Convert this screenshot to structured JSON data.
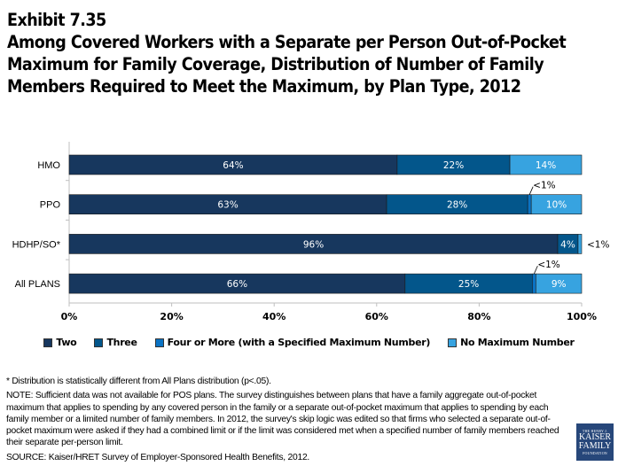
{
  "header": {
    "exhibit": "Exhibit 7.35",
    "title_lines": [
      "Among Covered Workers with a Separate per Person Out-of-Pocket",
      "Maximum for Family Coverage, Distribution of Number of Family",
      "Members Required to Meet the Maximum, by Plan Type, 2012"
    ]
  },
  "chart_data": {
    "type": "bar",
    "orientation": "horizontal",
    "stacked": true,
    "title": "Among Covered Workers with a Separate per Person Out-of-Pocket Maximum for Family Coverage, Distribution of Number of Family Members Required to Meet the Maximum, by Plan Type, 2012",
    "categories": [
      "HMO",
      "PPO",
      "HDHP/SO*",
      "All PLANS"
    ],
    "series": [
      {
        "name": "Two",
        "color": "#17375e",
        "values": [
          64,
          63,
          96,
          66
        ],
        "labels": [
          "64%",
          "63%",
          "96%",
          "66%"
        ]
      },
      {
        "name": "Three",
        "color": "#03568b",
        "values": [
          22,
          28,
          4,
          25
        ],
        "labels": [
          "22%",
          "28%",
          "4%",
          "25%"
        ]
      },
      {
        "name": "Four or More (with a Specified Maximum Number)",
        "color": "#0a73c4",
        "values": [
          0,
          0.7,
          0,
          0.7
        ],
        "labels": [
          "",
          "<1%",
          "",
          "<1%"
        ]
      },
      {
        "name": "No Maximum Number",
        "color": "#37a3e0",
        "values": [
          14,
          10,
          0.7,
          9
        ],
        "labels": [
          "14%",
          "10%",
          "<1%",
          "9%"
        ]
      }
    ],
    "xlabel": "",
    "ylabel": "",
    "xlim": [
      0,
      100
    ],
    "xticks": [
      "0%",
      "20%",
      "40%",
      "60%",
      "80%",
      "100%"
    ],
    "grid": false,
    "legend_position": "bottom"
  },
  "legend": [
    {
      "label": "Two",
      "color": "#17375e"
    },
    {
      "label": "Three",
      "color": "#03568b"
    },
    {
      "label": "Four or More (with a Specified Maximum Number)",
      "color": "#0a73c4"
    },
    {
      "label": "No Maximum Number",
      "color": "#37a3e0"
    }
  ],
  "notes": {
    "footnote": "* Distribution is statistically different from All Plans distribution (p<.05).",
    "note": "NOTE: Sufficient data was not available for POS plans. The survey distinguishes between plans that have a family aggregate out-of-pocket maximum that applies to spending by any covered person in the family or a separate out-of-pocket maximum that applies to spending by each family member or a limited number of family members.  In 2012, the survey's skip logic was edited so that firms who selected a separate out-of-pocket maximum were asked if they had a combined limit or if the limit was considered met when a specified number of family members reached their separate per-person limit.",
    "source": "SOURCE:  Kaiser/HRET Survey of Employer-Sponsored Health Benefits, 2012."
  },
  "logo": {
    "line1": "THE HENRY J.",
    "line2": "KAISER",
    "line3": "FAMILY",
    "line4": "FOUNDATION"
  }
}
